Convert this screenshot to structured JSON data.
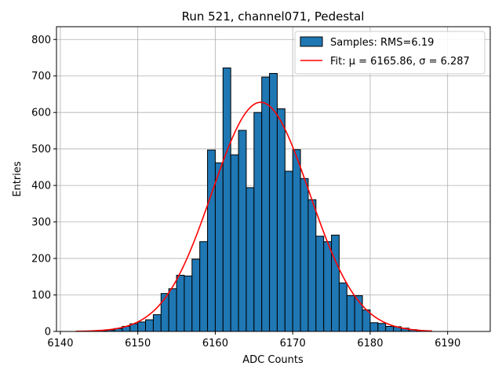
{
  "chart_data": {
    "type": "bar",
    "title": "Run 521, channel071, Pedestal",
    "xlabel": "ADC Counts",
    "ylabel": "Entries",
    "xlim": [
      6139.5,
      6195.5
    ],
    "ylim": [
      0,
      835
    ],
    "xticks": [
      6140,
      6150,
      6160,
      6170,
      6180,
      6190
    ],
    "yticks": [
      0,
      100,
      200,
      300,
      400,
      500,
      600,
      700,
      800
    ],
    "grid": true,
    "legend_position": "top-right",
    "colors": {
      "bars": "#1f77b4",
      "bar_edge": "#000000",
      "fit": "#ff0000"
    },
    "histogram": {
      "name": "Samples: RMS=6.19",
      "bin_width": 1,
      "bin_left_edges": [
        6145,
        6146,
        6147,
        6148,
        6149,
        6150,
        6151,
        6152,
        6153,
        6154,
        6155,
        6156,
        6157,
        6158,
        6159,
        6160,
        6161,
        6162,
        6163,
        6164,
        6165,
        6166,
        6167,
        6168,
        6169,
        6170,
        6171,
        6172,
        6173,
        6174,
        6175,
        6176,
        6177,
        6178,
        6179,
        6180,
        6181,
        6182,
        6183,
        6184,
        6185,
        6186
      ],
      "counts": [
        2,
        4,
        8,
        14,
        21,
        26,
        32,
        46,
        104,
        117,
        154,
        152,
        198,
        246,
        497,
        462,
        722,
        484,
        551,
        394,
        600,
        697,
        707,
        610,
        439,
        498,
        419,
        361,
        261,
        246,
        264,
        133,
        98,
        98,
        59,
        24,
        22,
        14,
        13,
        9,
        5,
        2
      ]
    },
    "fit": {
      "name": "Fit: μ = 6165.86, σ = 6.287",
      "type": "gaussian",
      "mu": 6165.86,
      "sigma": 6.287,
      "amplitude": 628,
      "x_range": [
        6142,
        6188
      ]
    },
    "legend": [
      {
        "label": "Samples: RMS=6.19",
        "marker": "patch"
      },
      {
        "label": "Fit: μ = 6165.86, σ = 6.287",
        "marker": "line"
      }
    ]
  }
}
